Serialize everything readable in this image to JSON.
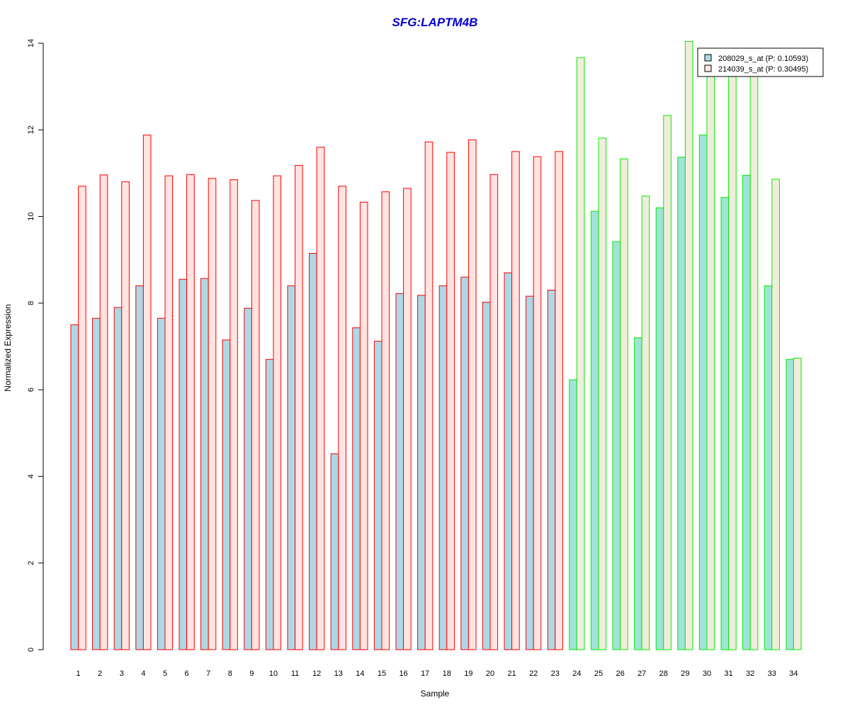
{
  "chart_data": {
    "type": "bar",
    "title": "SFG:LAPTM4B",
    "xlabel": "Sample",
    "ylabel": "Normalized Expression",
    "ylim": [
      0,
      14
    ],
    "yticks": [
      0,
      2,
      4,
      6,
      8,
      10,
      12,
      14
    ],
    "grid": false,
    "legend_position": "top-right",
    "categories": [
      "1",
      "2",
      "3",
      "4",
      "5",
      "6",
      "7",
      "8",
      "9",
      "10",
      "11",
      "12",
      "13",
      "14",
      "15",
      "16",
      "17",
      "18",
      "19",
      "20",
      "21",
      "22",
      "23",
      "24",
      "25",
      "26",
      "27",
      "28",
      "29",
      "30",
      "31",
      "32",
      "33",
      "34"
    ],
    "group_a_count": 23,
    "series": [
      {
        "name": "208029_s_at (P: 0.10593)",
        "values": [
          7.5,
          7.65,
          7.9,
          8.4,
          7.65,
          8.55,
          8.57,
          7.15,
          7.88,
          6.7,
          8.4,
          9.15,
          4.52,
          7.43,
          7.12,
          8.22,
          8.18,
          8.4,
          8.6,
          8.02,
          8.7,
          8.16,
          8.3,
          6.23,
          10.12,
          9.42,
          7.2,
          10.2,
          11.37,
          11.88,
          10.44,
          10.95,
          8.4,
          6.7
        ]
      },
      {
        "name": "214039_s_at (P: 0.30495)",
        "values": [
          10.7,
          10.96,
          10.8,
          11.88,
          10.94,
          10.97,
          10.88,
          10.85,
          10.37,
          10.94,
          11.18,
          11.6,
          10.7,
          10.33,
          10.57,
          10.65,
          11.72,
          11.48,
          11.77,
          10.97,
          11.5,
          11.38,
          11.5,
          13.67,
          11.81,
          11.33,
          10.47,
          12.33,
          14.04,
          13.5,
          13.4,
          13.4,
          10.86,
          6.73
        ]
      }
    ],
    "colors": {
      "series1_fill": "#add8e6",
      "series2_fill": "#ffe4e1",
      "groupA_border": "#ff0000",
      "groupB_border": "#00ee00",
      "groupB_series1_fill": "#a0e3d8",
      "groupB_series2_fill": "#f2ecdc",
      "title": "#0000cc"
    }
  }
}
